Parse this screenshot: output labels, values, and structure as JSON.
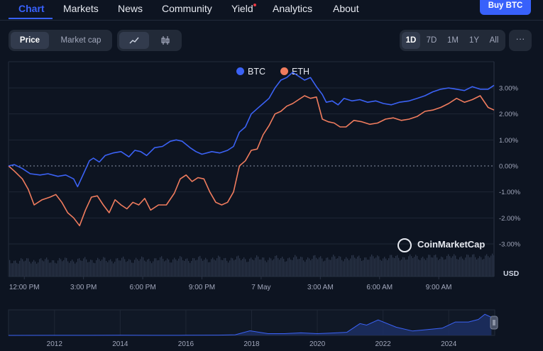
{
  "nav": {
    "items": [
      "Chart",
      "Markets",
      "News",
      "Community",
      "Yield",
      "Analytics",
      "About"
    ],
    "buy_label": "Buy BTC"
  },
  "controls": {
    "view_toggle": [
      "Price",
      "Market cap"
    ],
    "selected_view": "Price",
    "chart_style_icons": [
      "line-chart-icon",
      "candlestick-icon"
    ],
    "ranges": [
      "1D",
      "7D",
      "1M",
      "1Y",
      "All"
    ],
    "selected_range": "1D",
    "more_icon": "ellipsis-icon"
  },
  "colors": {
    "accent": "#3861fb",
    "btc": "#3b62f5",
    "eth": "#f07c5e",
    "background": "#0d1421",
    "alert_dot": "#ea3943"
  },
  "watermark": "CoinMarketCap",
  "unit_label": "USD",
  "chart_data": [
    {
      "type": "line",
      "legend": [
        "BTC",
        "ETH"
      ],
      "legend_position": "top-center",
      "y_unit": "%",
      "ylim": [
        -3.2,
        3.6
      ],
      "y_ticks": [
        "3.00%",
        "2.00%",
        "1.00%",
        "0.00%",
        "-1.00%",
        "-2.00%",
        "-3.00%"
      ],
      "y_tick_values": [
        3,
        2,
        1,
        0,
        -1,
        -2,
        -3
      ],
      "x_ticks": [
        "12:00 PM",
        "3:00 PM",
        "6:00 PM",
        "9:00 PM",
        "7 May",
        "3:00 AM",
        "6:00 AM",
        "9:00 AM"
      ],
      "x_tick_hours": [
        1,
        4,
        7,
        10,
        13,
        16,
        19,
        22
      ],
      "xlim_hours": [
        0.2,
        24.8
      ],
      "series": [
        {
          "name": "BTC",
          "x": [
            0.2,
            0.5,
            0.9,
            1.3,
            1.8,
            2.2,
            2.7,
            3.1,
            3.5,
            3.7,
            4.0,
            4.3,
            4.5,
            4.8,
            5.1,
            5.5,
            5.9,
            6.3,
            6.6,
            6.9,
            7.2,
            7.6,
            8.0,
            8.4,
            8.7,
            9.0,
            9.4,
            9.7,
            10.0,
            10.5,
            10.9,
            11.3,
            11.6,
            11.9,
            12.2,
            12.5,
            12.8,
            13.1,
            13.4,
            13.7,
            14.0,
            14.3,
            14.6,
            14.9,
            15.2,
            15.5,
            15.8,
            16.1,
            16.3,
            16.6,
            16.9,
            17.2,
            17.6,
            18.0,
            18.4,
            18.8,
            19.2,
            19.6,
            20.0,
            20.5,
            20.9,
            21.3,
            21.7,
            22.1,
            22.5,
            22.9,
            23.3,
            23.7,
            24.1,
            24.5,
            24.8
          ],
          "y": [
            0.0,
            0.05,
            -0.1,
            -0.3,
            -0.35,
            -0.3,
            -0.4,
            -0.35,
            -0.5,
            -0.8,
            -0.3,
            0.2,
            0.3,
            0.15,
            0.4,
            0.5,
            0.55,
            0.35,
            0.6,
            0.55,
            0.4,
            0.7,
            0.75,
            0.95,
            1.0,
            0.95,
            0.7,
            0.55,
            0.45,
            0.55,
            0.5,
            0.6,
            0.75,
            1.3,
            1.5,
            2.0,
            2.2,
            2.4,
            2.6,
            3.0,
            3.3,
            3.4,
            3.6,
            3.45,
            3.3,
            3.4,
            3.05,
            2.75,
            2.45,
            2.5,
            2.35,
            2.6,
            2.5,
            2.55,
            2.45,
            2.5,
            2.4,
            2.35,
            2.45,
            2.5,
            2.6,
            2.7,
            2.85,
            2.95,
            3.0,
            2.95,
            2.9,
            3.05,
            2.95,
            2.95,
            3.1
          ]
        },
        {
          "name": "ETH",
          "x": [
            0.2,
            0.5,
            0.9,
            1.2,
            1.5,
            1.9,
            2.3,
            2.6,
            2.9,
            3.2,
            3.5,
            3.8,
            4.1,
            4.4,
            4.7,
            5.0,
            5.3,
            5.6,
            5.9,
            6.2,
            6.5,
            6.8,
            7.1,
            7.4,
            7.8,
            8.2,
            8.6,
            8.9,
            9.2,
            9.5,
            9.8,
            10.1,
            10.4,
            10.7,
            11.0,
            11.3,
            11.6,
            11.9,
            12.2,
            12.5,
            12.8,
            13.1,
            13.4,
            13.7,
            14.0,
            14.3,
            14.6,
            14.9,
            15.2,
            15.5,
            15.8,
            16.1,
            16.4,
            16.7,
            17.0,
            17.3,
            17.7,
            18.1,
            18.5,
            18.9,
            19.3,
            19.7,
            20.1,
            20.5,
            20.9,
            21.3,
            21.7,
            22.1,
            22.5,
            22.9,
            23.3,
            23.7,
            24.1,
            24.5,
            24.8
          ],
          "y": [
            0.0,
            -0.2,
            -0.5,
            -0.9,
            -1.5,
            -1.3,
            -1.2,
            -1.1,
            -1.4,
            -1.8,
            -2.0,
            -2.3,
            -1.7,
            -1.2,
            -1.15,
            -1.5,
            -1.8,
            -1.3,
            -1.5,
            -1.65,
            -1.4,
            -1.5,
            -1.25,
            -1.7,
            -1.5,
            -1.5,
            -1.05,
            -0.5,
            -0.35,
            -0.6,
            -0.45,
            -0.5,
            -1.0,
            -1.4,
            -1.5,
            -1.4,
            -1.0,
            0.0,
            0.2,
            0.6,
            0.65,
            1.2,
            1.55,
            2.0,
            2.1,
            2.3,
            2.4,
            2.55,
            2.7,
            2.6,
            2.65,
            1.8,
            1.7,
            1.65,
            1.5,
            1.5,
            1.75,
            1.7,
            1.6,
            1.65,
            1.8,
            1.85,
            1.75,
            1.8,
            1.9,
            2.1,
            2.15,
            2.25,
            2.4,
            2.6,
            2.45,
            2.55,
            2.7,
            2.25,
            2.15
          ]
        }
      ],
      "volume_bars": true
    },
    {
      "type": "area",
      "role": "navigator",
      "x_ticks": [
        "2012",
        "2014",
        "2016",
        "2018",
        "2020",
        "2022",
        "2024"
      ],
      "x_tick_years": [
        2012,
        2014,
        2016,
        2018,
        2020,
        2022,
        2024
      ],
      "xlim_years": [
        2010.6,
        2025.4
      ],
      "series": [
        {
          "name": "BTC",
          "x": [
            2010.6,
            2012,
            2013,
            2014,
            2015,
            2016,
            2017,
            2017.5,
            2017.95,
            2018.5,
            2019,
            2019.5,
            2020,
            2020.4,
            2020.9,
            2021.3,
            2021.5,
            2021.85,
            2022.4,
            2022.9,
            2023.3,
            2023.8,
            2024.2,
            2024.6,
            2024.9,
            2025.1,
            2025.3
          ],
          "y": [
            0.0,
            0.01,
            0.02,
            0.03,
            0.02,
            0.03,
            0.05,
            0.12,
            0.9,
            0.35,
            0.35,
            0.5,
            0.35,
            0.45,
            0.6,
            2.3,
            2.0,
            3.0,
            1.6,
            0.85,
            1.1,
            1.4,
            2.6,
            2.6,
            3.1,
            4.1,
            3.5
          ]
        }
      ],
      "ylim": [
        0,
        4.4
      ]
    }
  ]
}
